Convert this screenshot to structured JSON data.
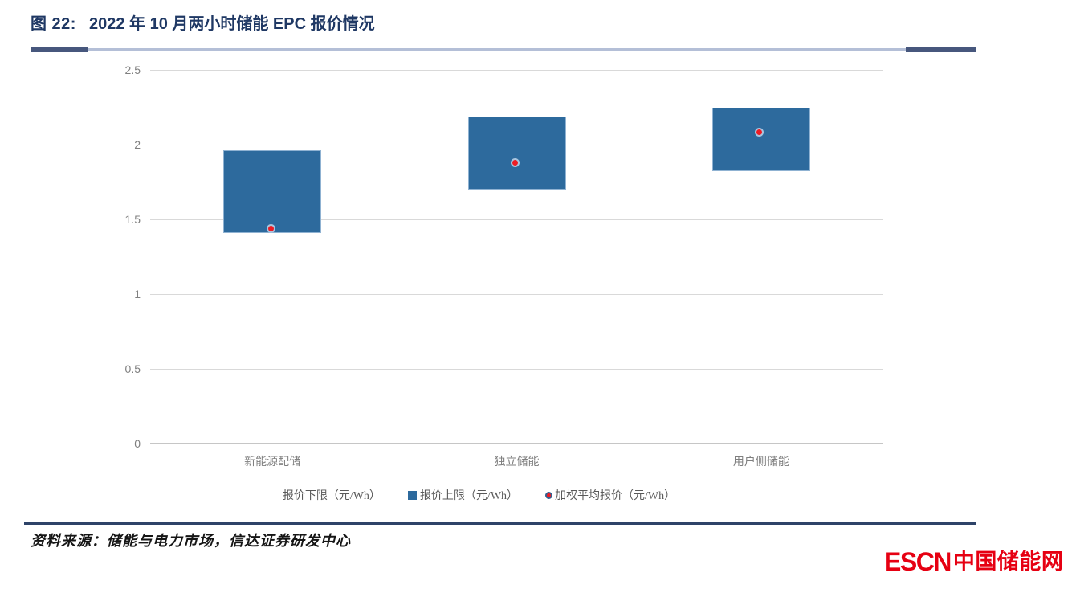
{
  "figure": {
    "title_prefix": "图 22:",
    "title": "2022 年 10 月两小时储能 EPC 报价情况"
  },
  "chart_data": {
    "type": "bar",
    "subtype": "floating-range-bar-with-average-point",
    "title": "2022 年 10 月两小时储能 EPC 报价情况",
    "categories": [
      "新能源配储",
      "独立储能",
      "用户侧储能"
    ],
    "series": [
      {
        "name": "报价下限（元/Wh）",
        "role": "lower",
        "values": [
          1.41,
          1.7,
          1.82
        ]
      },
      {
        "name": "报价上限（元/Wh）",
        "role": "upper",
        "values": [
          1.96,
          2.19,
          2.25
        ]
      },
      {
        "name": "加权平均报价（元/Wh）",
        "role": "point",
        "values": [
          1.43,
          1.87,
          2.07
        ]
      }
    ],
    "ylim": [
      0,
      2.5
    ],
    "yticks": [
      0,
      0.5,
      1,
      1.5,
      2,
      2.5
    ],
    "ytick_labels": [
      "0",
      "0.5",
      "1",
      "1.5",
      "2",
      "2.5"
    ],
    "xlabel": "",
    "ylabel": "",
    "grid": true,
    "legend_position": "bottom",
    "colors": {
      "bar_fill": "#2d6a9d",
      "bar_border": "#8fb2d2",
      "point_fill": "#ee1c24",
      "point_ring": "#a9c4de",
      "gridline": "#d9d9d9",
      "axis_text": "#7f7f7f"
    }
  },
  "legend": {
    "items": [
      {
        "label": "报价下限（元/Wh）",
        "marker": "none"
      },
      {
        "label": "报价上限（元/Wh）",
        "marker": "square",
        "color": "#2d6a9d"
      },
      {
        "label": "加权平均报价（元/Wh）",
        "marker": "circle",
        "color": "#ee1c24"
      }
    ]
  },
  "source": {
    "label": "资料来源：储能与电力市场，信达证券研发中心"
  },
  "logo": {
    "text_en": "ESCN",
    "text_cn": "中国储能网",
    "color": "#e60012"
  },
  "decor": {
    "title_color": "#1f3864",
    "rule_cap_color": "#47577d",
    "rule_mid_color": "#b4bfd7",
    "bottom_rule_color": "#2e4368"
  }
}
